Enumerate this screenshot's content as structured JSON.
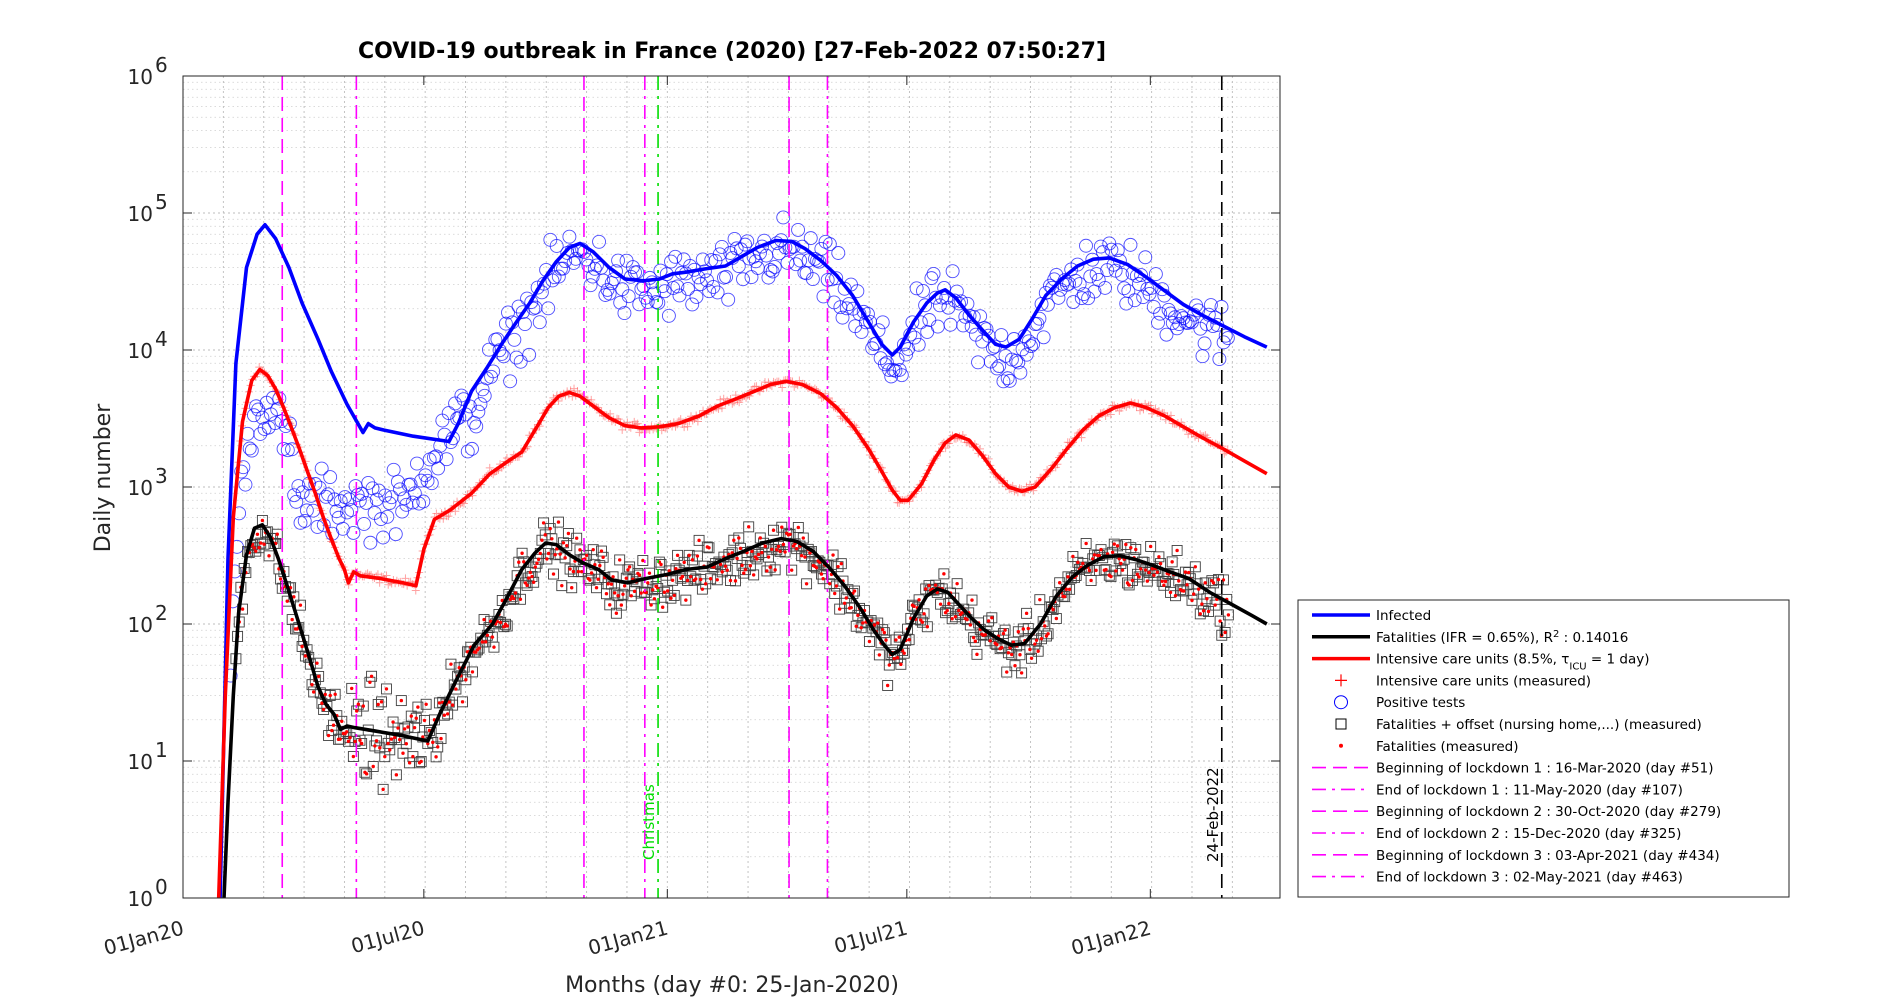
{
  "chart_data": {
    "type": "scatter",
    "title": "COVID-19 outbreak in France (2020) [27-Feb-2022 07:50:27]",
    "xlabel": "Months (day #0: 25-Jan-2020)",
    "ylabel": "Daily number",
    "y_scale": "log",
    "ylim": [
      1,
      1000000
    ],
    "xlim": [
      -24,
      805
    ],
    "y_ticks": [
      {
        "exp": "0",
        "value": 1
      },
      {
        "exp": "1",
        "value": 10
      },
      {
        "exp": "2",
        "value": 100
      },
      {
        "exp": "3",
        "value": 1000
      },
      {
        "exp": "4",
        "value": 10000
      },
      {
        "exp": "5",
        "value": 100000
      },
      {
        "exp": "6",
        "value": 1000000
      }
    ],
    "x_ticks": [
      {
        "label": "01Jan20",
        "day": -24
      },
      {
        "label": "01Jul20",
        "day": 158
      },
      {
        "label": "01Jan21",
        "day": 342
      },
      {
        "label": "01Jul21",
        "day": 523
      },
      {
        "label": "01Jan22",
        "day": 707
      }
    ],
    "grid": true,
    "legend_position": "lower-right outside",
    "lines": [
      {
        "name": "Infected",
        "color": "#0000ff",
        "points": [
          [
            4,
            1
          ],
          [
            10,
            300
          ],
          [
            16,
            8000
          ],
          [
            24,
            40000
          ],
          [
            32,
            70000
          ],
          [
            38,
            82000
          ],
          [
            46,
            65000
          ],
          [
            56,
            40000
          ],
          [
            66,
            22000
          ],
          [
            78,
            12000
          ],
          [
            88,
            7000
          ],
          [
            100,
            4000
          ],
          [
            112,
            2500
          ],
          [
            116,
            2900
          ],
          [
            121,
            2700
          ],
          [
            128,
            2600
          ],
          [
            150,
            2350
          ],
          [
            177,
            2150
          ],
          [
            184,
            2900
          ],
          [
            194,
            5000
          ],
          [
            206,
            7500
          ],
          [
            218,
            11500
          ],
          [
            228,
            16000
          ],
          [
            238,
            22000
          ],
          [
            248,
            32000
          ],
          [
            258,
            44000
          ],
          [
            268,
            56000
          ],
          [
            276,
            60000
          ],
          [
            286,
            52000
          ],
          [
            298,
            40000
          ],
          [
            310,
            33000
          ],
          [
            324,
            32000
          ],
          [
            336,
            33000
          ],
          [
            346,
            36000
          ],
          [
            356,
            37000
          ],
          [
            370,
            39000
          ],
          [
            386,
            41000
          ],
          [
            398,
            48000
          ],
          [
            410,
            56000
          ],
          [
            424,
            63000
          ],
          [
            436,
            62000
          ],
          [
            446,
            55000
          ],
          [
            458,
            45000
          ],
          [
            470,
            35000
          ],
          [
            482,
            25000
          ],
          [
            494,
            16000
          ],
          [
            504,
            11000
          ],
          [
            512,
            9200
          ],
          [
            518,
            10500
          ],
          [
            528,
            16000
          ],
          [
            538,
            22000
          ],
          [
            546,
            26000
          ],
          [
            552,
            27500
          ],
          [
            560,
            24000
          ],
          [
            570,
            18000
          ],
          [
            580,
            14000
          ],
          [
            590,
            11000
          ],
          [
            598,
            10500
          ],
          [
            608,
            12000
          ],
          [
            618,
            17000
          ],
          [
            628,
            25000
          ],
          [
            640,
            33000
          ],
          [
            652,
            41000
          ],
          [
            664,
            46000
          ],
          [
            676,
            47000
          ],
          [
            690,
            42000
          ],
          [
            704,
            34000
          ],
          [
            718,
            27000
          ],
          [
            732,
            21500
          ],
          [
            746,
            18000
          ],
          [
            762,
            15000
          ],
          [
            778,
            12500
          ],
          [
            795,
            10500
          ]
        ]
      },
      {
        "name": "Intensive care units (8.5%, τICU = 1 day)",
        "color": "#ff0000",
        "points": [
          [
            3,
            1
          ],
          [
            8,
            30
          ],
          [
            14,
            600
          ],
          [
            21,
            3000
          ],
          [
            28,
            6000
          ],
          [
            34,
            7200
          ],
          [
            40,
            6500
          ],
          [
            46,
            5200
          ],
          [
            52,
            3800
          ],
          [
            58,
            2700
          ],
          [
            64,
            1900
          ],
          [
            70,
            1300
          ],
          [
            76,
            900
          ],
          [
            82,
            600
          ],
          [
            88,
            420
          ],
          [
            94,
            300
          ],
          [
            98,
            250
          ],
          [
            101,
            200
          ],
          [
            105,
            240
          ],
          [
            110,
            225
          ],
          [
            125,
            215
          ],
          [
            142,
            200
          ],
          [
            152,
            190
          ],
          [
            158,
            350
          ],
          [
            166,
            580
          ],
          [
            178,
            680
          ],
          [
            194,
            900
          ],
          [
            208,
            1250
          ],
          [
            222,
            1550
          ],
          [
            232,
            1800
          ],
          [
            244,
            2800
          ],
          [
            252,
            3800
          ],
          [
            260,
            4600
          ],
          [
            268,
            4900
          ],
          [
            276,
            4600
          ],
          [
            286,
            3900
          ],
          [
            298,
            3200
          ],
          [
            310,
            2800
          ],
          [
            322,
            2700
          ],
          [
            336,
            2750
          ],
          [
            350,
            2900
          ],
          [
            366,
            3300
          ],
          [
            380,
            3900
          ],
          [
            394,
            4400
          ],
          [
            408,
            5000
          ],
          [
            420,
            5600
          ],
          [
            432,
            5900
          ],
          [
            444,
            5600
          ],
          [
            458,
            4800
          ],
          [
            470,
            3800
          ],
          [
            482,
            2800
          ],
          [
            494,
            1900
          ],
          [
            504,
            1300
          ],
          [
            512,
            950
          ],
          [
            518,
            800
          ],
          [
            524,
            800
          ],
          [
            534,
            1050
          ],
          [
            544,
            1600
          ],
          [
            552,
            2100
          ],
          [
            560,
            2400
          ],
          [
            570,
            2200
          ],
          [
            580,
            1700
          ],
          [
            590,
            1250
          ],
          [
            600,
            1000
          ],
          [
            610,
            930
          ],
          [
            620,
            1000
          ],
          [
            632,
            1350
          ],
          [
            644,
            1900
          ],
          [
            656,
            2600
          ],
          [
            668,
            3300
          ],
          [
            680,
            3800
          ],
          [
            692,
            4100
          ],
          [
            704,
            3800
          ],
          [
            718,
            3300
          ],
          [
            732,
            2750
          ],
          [
            746,
            2300
          ],
          [
            762,
            1900
          ],
          [
            778,
            1550
          ],
          [
            795,
            1250
          ]
        ]
      },
      {
        "name": "Fatalities (IFR = 0.65%), R² : 0.14016",
        "color": "#000000",
        "points": [
          [
            7,
            1
          ],
          [
            10,
            5
          ],
          [
            14,
            30
          ],
          [
            18,
            120
          ],
          [
            24,
            320
          ],
          [
            30,
            500
          ],
          [
            36,
            530
          ],
          [
            42,
            430
          ],
          [
            48,
            300
          ],
          [
            54,
            200
          ],
          [
            60,
            130
          ],
          [
            66,
            85
          ],
          [
            72,
            55
          ],
          [
            78,
            35
          ],
          [
            84,
            26
          ],
          [
            90,
            22
          ],
          [
            95,
            17
          ],
          [
            100,
            18
          ],
          [
            106,
            17.5
          ],
          [
            122,
            16.5
          ],
          [
            142,
            15.3
          ],
          [
            161,
            14
          ],
          [
            170,
            22
          ],
          [
            182,
            38
          ],
          [
            196,
            70
          ],
          [
            210,
            100
          ],
          [
            220,
            150
          ],
          [
            232,
            250
          ],
          [
            242,
            330
          ],
          [
            250,
            390
          ],
          [
            258,
            380
          ],
          [
            268,
            320
          ],
          [
            278,
            280
          ],
          [
            290,
            250
          ],
          [
            300,
            210
          ],
          [
            312,
            200
          ],
          [
            326,
            215
          ],
          [
            342,
            230
          ],
          [
            356,
            250
          ],
          [
            372,
            260
          ],
          [
            386,
            300
          ],
          [
            400,
            340
          ],
          [
            414,
            390
          ],
          [
            428,
            420
          ],
          [
            440,
            400
          ],
          [
            452,
            340
          ],
          [
            464,
            260
          ],
          [
            476,
            190
          ],
          [
            488,
            130
          ],
          [
            498,
            90
          ],
          [
            506,
            70
          ],
          [
            512,
            60
          ],
          [
            518,
            65
          ],
          [
            528,
            110
          ],
          [
            538,
            160
          ],
          [
            546,
            180
          ],
          [
            554,
            170
          ],
          [
            562,
            140
          ],
          [
            572,
            110
          ],
          [
            582,
            90
          ],
          [
            592,
            78
          ],
          [
            602,
            70
          ],
          [
            612,
            72
          ],
          [
            624,
            100
          ],
          [
            636,
            160
          ],
          [
            648,
            220
          ],
          [
            660,
            270
          ],
          [
            672,
            310
          ],
          [
            684,
            315
          ],
          [
            696,
            295
          ],
          [
            708,
            270
          ],
          [
            722,
            240
          ],
          [
            736,
            215
          ],
          [
            752,
            170
          ],
          [
            768,
            140
          ],
          [
            784,
            115
          ],
          [
            795,
            100
          ]
        ]
      }
    ],
    "scatter_series": [
      {
        "name": "Intensive care units (measured)",
        "marker": "+",
        "color": "#ff0000"
      },
      {
        "name": "Positive tests",
        "marker": "o",
        "color": "#0000ff"
      },
      {
        "name": "Fatalities + offset (nursing home,...) (measured)",
        "marker": "square",
        "color": "#000000"
      },
      {
        "name": "Fatalities (measured)",
        "marker": "dot",
        "color": "#ff0000"
      }
    ],
    "vertical_lines": [
      {
        "day": 51,
        "style": "dash",
        "color": "#ff00ff",
        "label": "Beginning of lockdown 1 : 16-Mar-2020 (day #51)"
      },
      {
        "day": 107,
        "style": "dashdot",
        "color": "#ff00ff",
        "label": "End of lockdown 1 : 11-May-2020 (day #107)"
      },
      {
        "day": 279,
        "style": "dash",
        "color": "#ff00ff",
        "label": "Beginning of lockdown 2 : 30-Oct-2020 (day #279)"
      },
      {
        "day": 325,
        "style": "dashdot",
        "color": "#ff00ff",
        "label": "End of lockdown 2 : 15-Dec-2020 (day #325)"
      },
      {
        "day": 434,
        "style": "dash",
        "color": "#ff00ff",
        "label": "Beginning of lockdown 3 : 03-Apr-2021 (day #434)"
      },
      {
        "day": 463,
        "style": "dashdot",
        "color": "#ff00ff",
        "label": "End of lockdown 3 : 02-May-2021 (day #463)"
      }
    ],
    "annotations": [
      {
        "day": 335,
        "text": "Christmas",
        "color": "#00dd00",
        "style": "dashdot"
      },
      {
        "day": 761,
        "text": "24-Feb-2022",
        "color": "#000000",
        "style": "dash"
      }
    ],
    "legend": [
      {
        "text": "Infected",
        "kind": "line",
        "color": "#0000ff"
      },
      {
        "text": "Fatalities (IFR = 0.65%), R",
        "sup": "2",
        "tail": " : 0.14016",
        "kind": "line",
        "color": "#000000"
      },
      {
        "text": "Intensive care units (8.5%, τ",
        "sub": "ICU",
        "tail": " = 1 day)",
        "kind": "line",
        "color": "#ff0000"
      },
      {
        "text": "Intensive care units (measured)",
        "kind": "plus",
        "color": "#ff0000"
      },
      {
        "text": "Positive tests",
        "kind": "circle",
        "color": "#0000ff"
      },
      {
        "text": "Fatalities + offset (nursing home,...) (measured)",
        "kind": "square",
        "color": "#000000"
      },
      {
        "text": "Fatalities (measured)",
        "kind": "dot",
        "color": "#ff0000"
      },
      {
        "text": "Beginning of lockdown 1 : 16-Mar-2020 (day #51)",
        "kind": "dash",
        "color": "#ff00ff"
      },
      {
        "text": "End of lockdown 1 : 11-May-2020 (day #107)",
        "kind": "dashdot",
        "color": "#ff00ff"
      },
      {
        "text": "Beginning of lockdown 2 : 30-Oct-2020 (day #279)",
        "kind": "dash",
        "color": "#ff00ff"
      },
      {
        "text": "End of lockdown 2 : 15-Dec-2020 (day #325)",
        "kind": "dashdot",
        "color": "#ff00ff"
      },
      {
        "text": "Beginning of lockdown 3 : 03-Apr-2021 (day #434)",
        "kind": "dash",
        "color": "#ff00ff"
      },
      {
        "text": "End of lockdown 3 : 02-May-2021 (day #463)",
        "kind": "dashdot",
        "color": "#ff00ff"
      }
    ]
  }
}
